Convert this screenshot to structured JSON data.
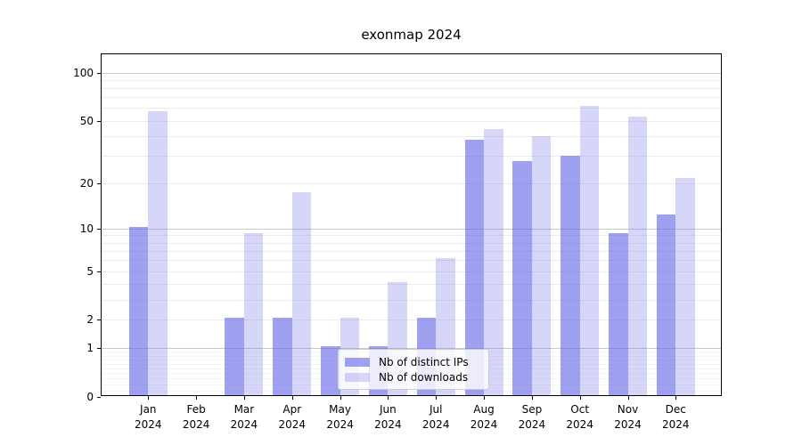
{
  "title": "exonmap 2024",
  "chart_data": {
    "type": "bar",
    "title": "exonmap 2024",
    "categories": [
      "Jan 2024",
      "Feb 2024",
      "Mar 2024",
      "Apr 2024",
      "May 2024",
      "Jun 2024",
      "Jul 2024",
      "Aug 2024",
      "Sep 2024",
      "Oct 2024",
      "Nov 2024",
      "Dec 2024"
    ],
    "x_tick_line1": [
      "Jan",
      "Feb",
      "Mar",
      "Apr",
      "May",
      "Jun",
      "Jul",
      "Aug",
      "Sep",
      "Oct",
      "Nov",
      "Dec"
    ],
    "x_tick_line2": [
      "2024",
      "2024",
      "2024",
      "2024",
      "2024",
      "2024",
      "2024",
      "2024",
      "2024",
      "2024",
      "2024",
      "2024"
    ],
    "series": [
      {
        "name": "Nb of distinct IPs",
        "color": "rgba(102,102,232,0.62)",
        "values": [
          10,
          0,
          2,
          2,
          1,
          1,
          2,
          37,
          27,
          29,
          9,
          12
        ]
      },
      {
        "name": "Nb of downloads",
        "color": "rgba(102,102,232,0.27)",
        "values": [
          56,
          0,
          9,
          17,
          2,
          4,
          6,
          43,
          39,
          60,
          52,
          21
        ]
      }
    ],
    "yscale": "log1p",
    "ylim": [
      0,
      130
    ],
    "y_ticks": [
      100,
      50,
      20,
      10,
      5,
      2,
      1,
      0
    ],
    "y_minor_gridlines": [
      2,
      3,
      4,
      5,
      6,
      7,
      8,
      9,
      20,
      30,
      40,
      50,
      60,
      70,
      80,
      90
    ],
    "y_subminor_gridlines": [
      0.1,
      0.2,
      0.3,
      0.4,
      0.5,
      0.6,
      0.7,
      0.8,
      0.9
    ],
    "y_major_gridlines": [
      1,
      10,
      100
    ],
    "grid": true,
    "legend_position": "lower center"
  },
  "colors": {
    "bar_distinct_ips": "rgba(102,102,232,0.62)",
    "bar_downloads": "rgba(102,102,232,0.27)",
    "grid_major": "#c9c9c9",
    "grid_minor": "#ececec",
    "spine": "#000000"
  }
}
